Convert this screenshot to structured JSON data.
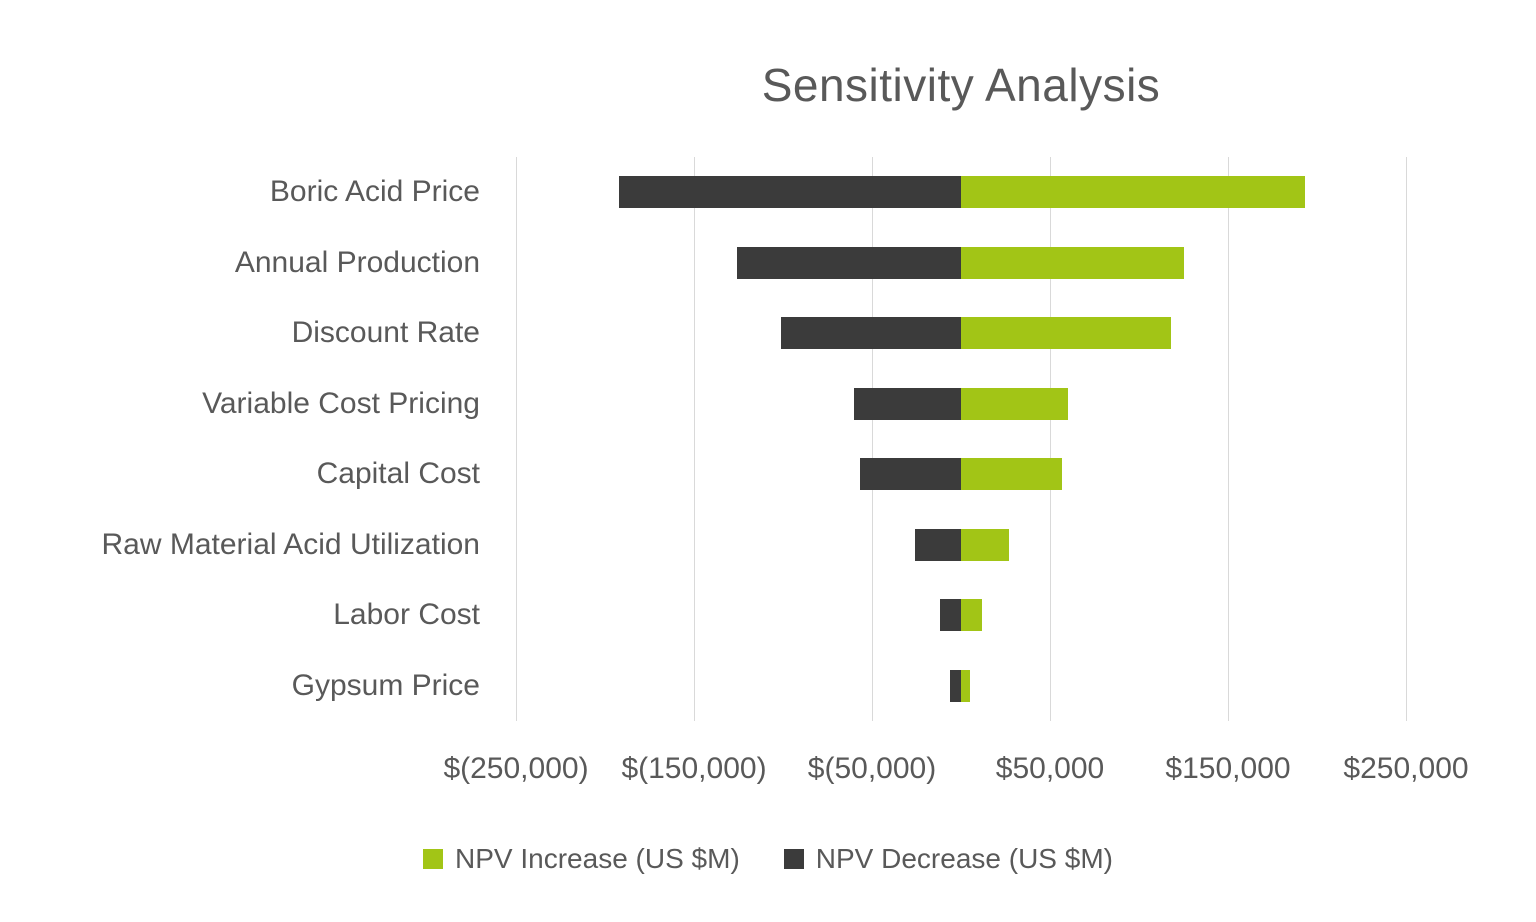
{
  "title": "Sensitivity Analysis",
  "colors": {
    "increase": "#a2c516",
    "decrease": "#3b3b3b",
    "text": "#595959",
    "gridline": "#d9d9d9",
    "background": "#ffffff"
  },
  "legend": {
    "items": [
      {
        "label": "NPV Increase (US $M)",
        "series": "increase"
      },
      {
        "label": "NPV Decrease (US $M)",
        "series": "decrease"
      }
    ]
  },
  "chart_data": {
    "type": "bar",
    "subtype": "tornado",
    "orientation": "horizontal",
    "title": "Sensitivity Analysis",
    "categories": [
      "Boric Acid Price",
      "Annual Production",
      "Discount Rate",
      "Variable Cost Pricing",
      "Capital Cost",
      "Raw Material Acid Utilization",
      "Labor Cost",
      "Gypsum Price"
    ],
    "series": [
      {
        "name": "NPV Increase (US $M)",
        "color": "#a2c516",
        "values": [
          193000,
          125000,
          118000,
          60000,
          57000,
          27000,
          12000,
          5000
        ]
      },
      {
        "name": "NPV Decrease (US $M)",
        "color": "#3b3b3b",
        "values": [
          -192000,
          -126000,
          -101000,
          -60000,
          -57000,
          -26000,
          -12000,
          -6000
        ]
      }
    ],
    "xlim": [
      -250000,
      250000
    ],
    "x_ticks": [
      -250000,
      -150000,
      -50000,
      50000,
      150000,
      250000
    ],
    "x_tick_labels": [
      "$(250,000)",
      "$(150,000)",
      "$(50,000)",
      "$50,000",
      "$150,000",
      "$250,000"
    ],
    "grid": "vertical-only",
    "legend_position": "bottom"
  }
}
